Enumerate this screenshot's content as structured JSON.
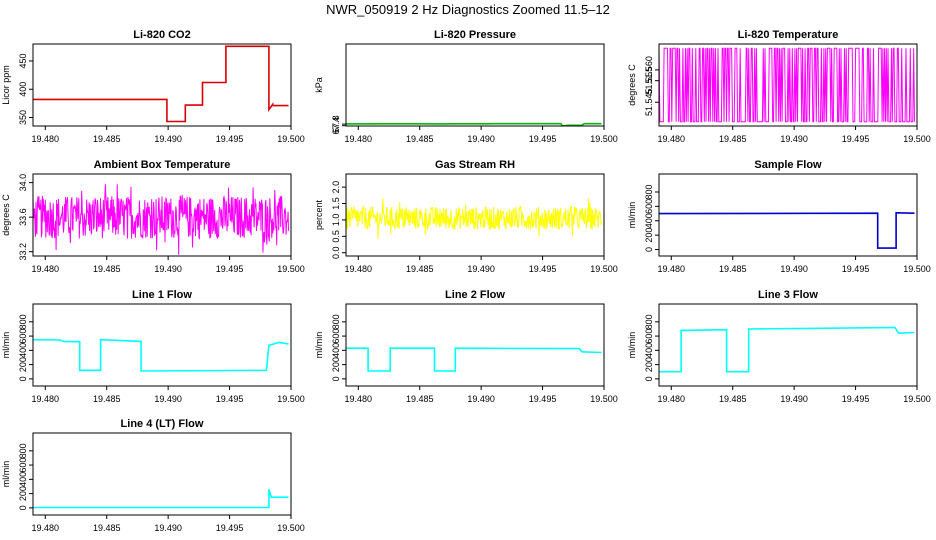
{
  "figure_title": "NWR_050919  2 Hz Diagnostics Zoomed 11.5–12",
  "chart_data": [
    {
      "type": "line",
      "title": "Li-820 CO2",
      "ylabel": "Licor ppm",
      "color": "#dd0000",
      "xlim": [
        19.479,
        19.5
      ],
      "ylim": [
        335,
        480
      ],
      "xticks": [
        19.48,
        19.485,
        19.49,
        19.495,
        19.5
      ],
      "xtick_labels": [
        "19.480",
        "19.485",
        "19.490",
        "19.495",
        "19.500"
      ],
      "yticks": [
        350,
        400,
        450
      ],
      "ytick_labels": [
        "350",
        "400",
        "450"
      ],
      "x": [
        19.479,
        19.4899,
        19.4899,
        19.4914,
        19.4914,
        19.4928,
        19.4928,
        19.4947,
        19.4947,
        19.4982,
        19.4982,
        19.4985,
        19.4985,
        19.4998
      ],
      "y": [
        382,
        382,
        343,
        343,
        372,
        372,
        412,
        412,
        476,
        476,
        364,
        373,
        371,
        371
      ]
    },
    {
      "type": "line",
      "title": "Li-820 Pressure",
      "ylabel": "kPa",
      "color": "#00bb00",
      "xlim": [
        19.479,
        19.5
      ],
      "ylim": [
        67.32,
        87.92
      ],
      "xticks": [
        19.48,
        19.485,
        19.49,
        19.495,
        19.5
      ],
      "xtick_labels": [
        "19.480",
        "19.485",
        "19.490",
        "19.495",
        "19.500"
      ],
      "yticks": [
        67.4,
        67.8
      ],
      "ytick_labels": [
        "67.4",
        "67.8"
      ],
      "x": [
        19.479,
        19.484,
        19.4845,
        19.487,
        19.4875,
        19.4905,
        19.491,
        19.4965,
        19.4966,
        19.497,
        19.497,
        19.4982,
        19.4984,
        19.4986,
        19.4992,
        19.4998
      ],
      "y": [
        67.86,
        67.87,
        67.87,
        67.86,
        67.87,
        67.88,
        67.89,
        67.89,
        67.36,
        67.36,
        67.5,
        67.52,
        67.9,
        67.9,
        67.89,
        67.89
      ]
    },
    {
      "type": "line",
      "title": "Li-820 Temperature",
      "ylabel": "degrees C",
      "color": "#ff00ff",
      "xlim": [
        19.479,
        19.5
      ],
      "ylim": [
        51.534,
        51.572
      ],
      "xticks": [
        19.48,
        19.485,
        19.49,
        19.495,
        19.5
      ],
      "xtick_labels": [
        "19.480",
        "19.485",
        "19.490",
        "19.495",
        "19.500"
      ],
      "yticks": [
        51.545,
        51.555,
        51.56
      ],
      "ytick_labels": [
        "51.545",
        "51.555",
        "51.560"
      ],
      "x": [
        19.479,
        19.4998
      ],
      "y": [
        51.536,
        51.57
      ],
      "pattern": "square_noise"
    },
    {
      "type": "line",
      "title": "Ambient Box Temperature",
      "ylabel": "degrees C",
      "color": "#ff00ff",
      "xlim": [
        19.479,
        19.5
      ],
      "ylim": [
        33.15,
        34.1
      ],
      "xticks": [
        19.48,
        19.485,
        19.49,
        19.495,
        19.5
      ],
      "xtick_labels": [
        "19.480",
        "19.485",
        "19.490",
        "19.495",
        "19.500"
      ],
      "yticks": [
        33.2,
        33.6,
        34.0
      ],
      "ytick_labels": [
        "33.2",
        "33.6",
        "34.0"
      ],
      "x": [
        19.479,
        19.4998
      ],
      "y": [
        33.6,
        33.6
      ],
      "pattern": "noise",
      "noise_amp": 0.25
    },
    {
      "type": "line",
      "title": "Gas Stream RH",
      "ylabel": "percent",
      "color": "#ffff00",
      "xlim": [
        19.479,
        19.5
      ],
      "ylim": [
        -0.1,
        2.4
      ],
      "xticks": [
        19.48,
        19.485,
        19.49,
        19.495,
        19.5
      ],
      "xtick_labels": [
        "19.480",
        "19.485",
        "19.490",
        "19.495",
        "19.500"
      ],
      "yticks": [
        0.0,
        0.5,
        1.0,
        1.5,
        2.0
      ],
      "ytick_labels": [
        "0.0",
        "0.5",
        "1.0",
        "1.5",
        "2.0"
      ],
      "x": [
        19.479,
        19.4998
      ],
      "y": [
        1.05,
        1.05
      ],
      "pattern": "noise",
      "noise_amp": 0.35
    },
    {
      "type": "line",
      "title": "Sample Flow",
      "ylabel": "ml/min",
      "color": "#0000cc",
      "xlim": [
        19.479,
        19.5
      ],
      "ylim": [
        -90,
        1050
      ],
      "xticks": [
        19.48,
        19.485,
        19.49,
        19.495,
        19.5
      ],
      "xtick_labels": [
        "19.480",
        "19.485",
        "19.490",
        "19.495",
        "19.500"
      ],
      "yticks": [
        0,
        200,
        400,
        600,
        800
      ],
      "ytick_labels": [
        "0",
        "200",
        "400",
        "600",
        "800"
      ],
      "x": [
        19.479,
        19.4968,
        19.4968,
        19.4983,
        19.4983,
        19.4998
      ],
      "y": [
        500,
        505,
        20,
        20,
        510,
        505
      ]
    },
    {
      "type": "line",
      "title": "Line 1 Flow",
      "ylabel": "ml/min",
      "color": "#00ffff",
      "xlim": [
        19.479,
        19.5
      ],
      "ylim": [
        -100,
        1050
      ],
      "xticks": [
        19.48,
        19.485,
        19.49,
        19.495,
        19.5
      ],
      "xtick_labels": [
        "19.480",
        "19.485",
        "19.490",
        "19.495",
        "19.500"
      ],
      "yticks": [
        0,
        200,
        400,
        600,
        800
      ],
      "ytick_labels": [
        "0",
        "200",
        "400",
        "600",
        "800"
      ],
      "x": [
        19.479,
        19.4812,
        19.4815,
        19.4828,
        19.4828,
        19.4845,
        19.4845,
        19.4878,
        19.4878,
        19.498,
        19.4982,
        19.499,
        19.4998
      ],
      "y": [
        550,
        545,
        525,
        520,
        120,
        120,
        550,
        525,
        110,
        120,
        470,
        510,
        490
      ]
    },
    {
      "type": "line",
      "title": "Line 2 Flow",
      "ylabel": "ml/min",
      "color": "#00ffff",
      "xlim": [
        19.479,
        19.5
      ],
      "ylim": [
        -100,
        1050
      ],
      "xticks": [
        19.48,
        19.485,
        19.49,
        19.495,
        19.5
      ],
      "xtick_labels": [
        "19.480",
        "19.485",
        "19.490",
        "19.495",
        "19.500"
      ],
      "yticks": [
        0,
        200,
        400,
        600,
        800
      ],
      "ytick_labels": [
        "0",
        "200",
        "400",
        "600",
        "800"
      ],
      "x": [
        19.479,
        19.4808,
        19.4808,
        19.4826,
        19.4826,
        19.4862,
        19.4862,
        19.4879,
        19.4879,
        19.498,
        19.4982,
        19.4998
      ],
      "y": [
        430,
        430,
        110,
        110,
        430,
        430,
        110,
        110,
        430,
        425,
        380,
        370
      ]
    },
    {
      "type": "line",
      "title": "Line 3 Flow",
      "ylabel": "ml/min",
      "color": "#00ffff",
      "xlim": [
        19.479,
        19.5
      ],
      "ylim": [
        -100,
        1050
      ],
      "xticks": [
        19.48,
        19.485,
        19.49,
        19.495,
        19.5
      ],
      "xtick_labels": [
        "19.480",
        "19.485",
        "19.490",
        "19.495",
        "19.500"
      ],
      "yticks": [
        0,
        200,
        400,
        600,
        800
      ],
      "ytick_labels": [
        "0",
        "200",
        "400",
        "600",
        "800"
      ],
      "x": [
        19.479,
        19.4808,
        19.4808,
        19.4845,
        19.4845,
        19.4863,
        19.4863,
        19.4982,
        19.4985,
        19.4998
      ],
      "y": [
        100,
        100,
        680,
        690,
        100,
        100,
        700,
        720,
        640,
        650
      ]
    },
    {
      "type": "line",
      "title": "Line 4 (LT) Flow",
      "ylabel": "ml/min",
      "color": "#00ffff",
      "xlim": [
        19.479,
        19.5
      ],
      "ylim": [
        -100,
        1050
      ],
      "xticks": [
        19.48,
        19.485,
        19.49,
        19.495,
        19.5
      ],
      "xtick_labels": [
        "19.480",
        "19.485",
        "19.490",
        "19.495",
        "19.500"
      ],
      "yticks": [
        0,
        200,
        400,
        600,
        800
      ],
      "ytick_labels": [
        "0",
        "200",
        "400",
        "600",
        "800"
      ],
      "x": [
        19.479,
        19.4982,
        19.4982,
        19.4984,
        19.4998
      ],
      "y": [
        5,
        5,
        260,
        150,
        150
      ]
    }
  ]
}
